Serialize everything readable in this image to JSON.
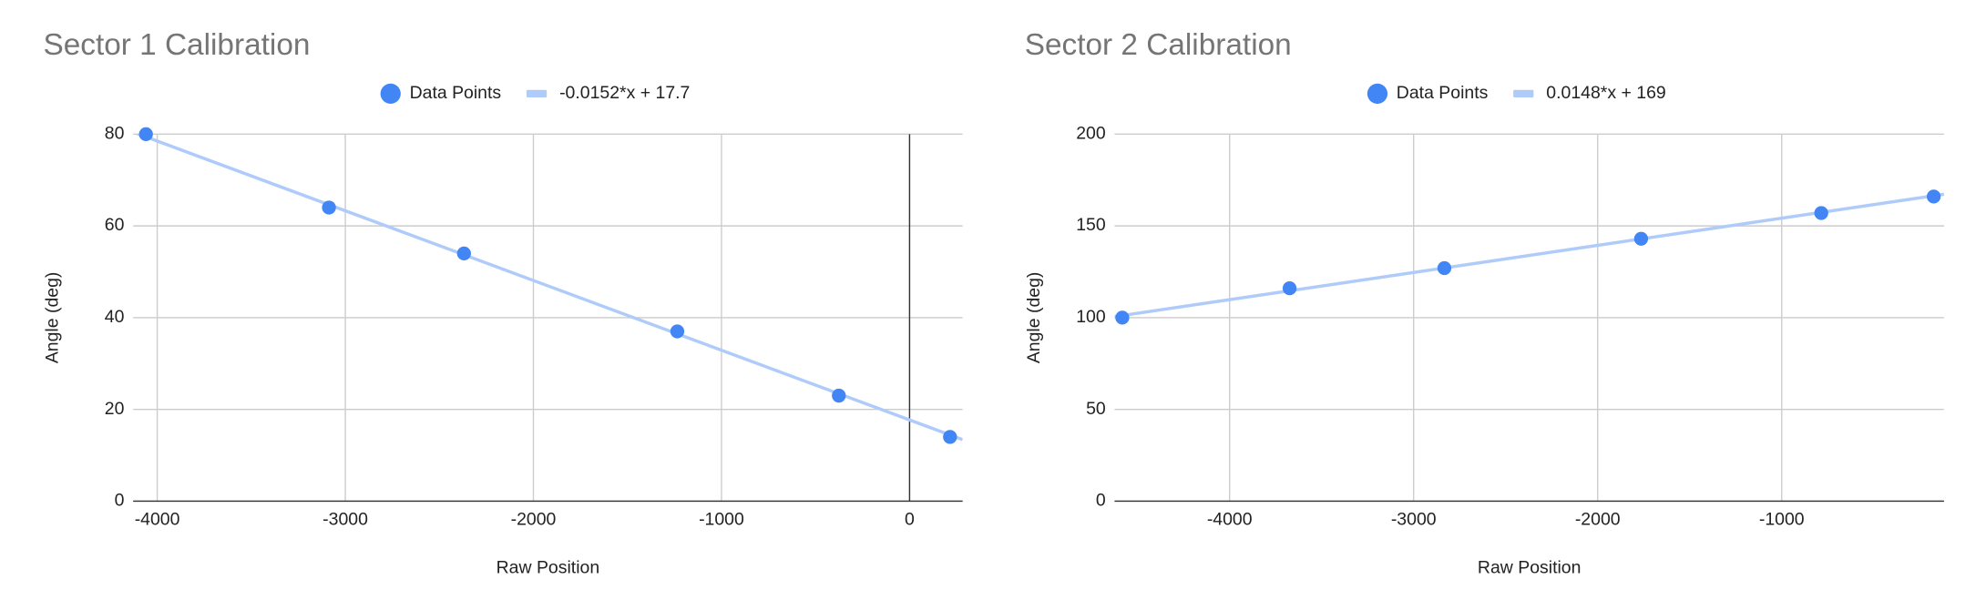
{
  "chart_data": [
    {
      "type": "scatter",
      "title": "Sector 1 Calibration",
      "x_label": "Raw Position",
      "y_label": "Angle (deg)",
      "xlim": [
        -4128,
        282
      ],
      "xticks": [
        -4000,
        -3000,
        -2000,
        -1000,
        0
      ],
      "ylim": [
        0,
        80
      ],
      "yticks": [
        0,
        20,
        40,
        60,
        80
      ],
      "grid": true,
      "series": [
        {
          "name": "Data Points",
          "color": "#4285f4",
          "x": [
            -4060,
            -3087,
            -2369,
            -1235,
            -376,
            215
          ],
          "values": [
            80,
            64,
            54,
            37,
            23,
            14
          ]
        }
      ],
      "trendline": {
        "name": "-0.0152*x + 17.7",
        "color": "#aecbfa",
        "slope": -0.0152,
        "intercept": 17.7
      }
    },
    {
      "type": "scatter",
      "title": "Sector 2 Calibration",
      "x_label": "Raw Position",
      "y_label": "Angle (deg)",
      "xlim": [
        -4625,
        -118
      ],
      "xticks": [
        -4000,
        -3000,
        -2000,
        -1000
      ],
      "ylim": [
        0,
        200
      ],
      "yticks": [
        0,
        50,
        100,
        150,
        200
      ],
      "grid": true,
      "series": [
        {
          "name": "Data Points",
          "color": "#4285f4",
          "x": [
            -4583,
            -3674,
            -2833,
            -1764,
            -785,
            -174
          ],
          "values": [
            100,
            116,
            127,
            143,
            157,
            166
          ]
        }
      ],
      "trendline": {
        "name": "0.0148*x + 169",
        "color": "#aecbfa",
        "slope": 0.0148,
        "intercept": 169
      }
    }
  ]
}
